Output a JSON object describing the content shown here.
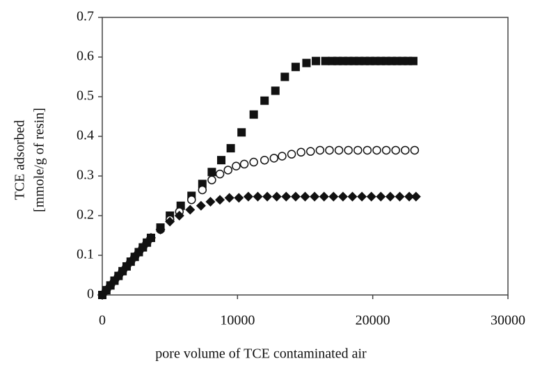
{
  "chart_data": {
    "type": "scatter",
    "ylabel": [
      "TCE adsorbed",
      "[mmole/g of resin]"
    ],
    "xlabel": "pore volume of TCE contaminated air",
    "xlim": [
      0,
      30000
    ],
    "xticks": [
      0,
      10000,
      20000,
      30000
    ],
    "ylim": [
      0,
      0.7
    ],
    "yticks": [
      0,
      0.1,
      0.2,
      0.3,
      0.4,
      0.5,
      0.6,
      0.7
    ],
    "series": [
      {
        "marker": "square",
        "color": "#111111",
        "x": [
          0,
          300,
          600,
          900,
          1200,
          1500,
          1800,
          2100,
          2400,
          2700,
          3000,
          3300,
          3600,
          4300,
          5000,
          5800,
          6600,
          7400,
          8100,
          8800,
          9500,
          10300,
          11200,
          12000,
          12800,
          13500,
          14300,
          15100,
          15800,
          16500,
          17000,
          17400,
          17800,
          18200,
          18600,
          19000,
          19400,
          19800,
          20200,
          20600,
          21000,
          21400,
          21800,
          22200,
          22600,
          23000
        ],
        "values": [
          0,
          0.012,
          0.024,
          0.036,
          0.048,
          0.06,
          0.072,
          0.084,
          0.096,
          0.108,
          0.12,
          0.132,
          0.144,
          0.17,
          0.2,
          0.225,
          0.25,
          0.28,
          0.31,
          0.34,
          0.37,
          0.41,
          0.455,
          0.49,
          0.515,
          0.55,
          0.575,
          0.585,
          0.59,
          0.59,
          0.59,
          0.59,
          0.59,
          0.59,
          0.59,
          0.59,
          0.59,
          0.59,
          0.59,
          0.59,
          0.59,
          0.59,
          0.59,
          0.59,
          0.59,
          0.59
        ]
      },
      {
        "marker": "open-circle",
        "color": "#111111",
        "x": [
          0,
          300,
          600,
          900,
          1200,
          1500,
          1800,
          2100,
          2400,
          2700,
          3000,
          3300,
          3600,
          4300,
          5000,
          5700,
          6600,
          7400,
          8100,
          8700,
          9300,
          9900,
          10500,
          11200,
          12000,
          12700,
          13300,
          14000,
          14700,
          15400,
          16100,
          16800,
          17500,
          18200,
          18900,
          19600,
          20300,
          21000,
          21700,
          22400,
          23100
        ],
        "values": [
          0,
          0.012,
          0.024,
          0.036,
          0.048,
          0.06,
          0.072,
          0.084,
          0.096,
          0.108,
          0.12,
          0.132,
          0.144,
          0.165,
          0.19,
          0.21,
          0.24,
          0.265,
          0.29,
          0.305,
          0.315,
          0.325,
          0.33,
          0.335,
          0.34,
          0.345,
          0.35,
          0.355,
          0.36,
          0.362,
          0.365,
          0.365,
          0.365,
          0.365,
          0.365,
          0.365,
          0.365,
          0.365,
          0.365,
          0.365,
          0.365
        ]
      },
      {
        "marker": "diamond",
        "color": "#111111",
        "x": [
          0,
          300,
          600,
          900,
          1200,
          1500,
          1800,
          2100,
          2400,
          2700,
          3000,
          3300,
          3600,
          4300,
          5000,
          5700,
          6500,
          7300,
          8000,
          8700,
          9400,
          10100,
          10800,
          11500,
          12200,
          12900,
          13600,
          14300,
          15000,
          15700,
          16400,
          17100,
          17800,
          18500,
          19200,
          19900,
          20600,
          21300,
          22000,
          22700,
          23200
        ],
        "values": [
          0,
          0.012,
          0.024,
          0.036,
          0.048,
          0.06,
          0.072,
          0.084,
          0.096,
          0.108,
          0.12,
          0.132,
          0.144,
          0.165,
          0.185,
          0.2,
          0.215,
          0.225,
          0.235,
          0.24,
          0.245,
          0.245,
          0.248,
          0.248,
          0.248,
          0.248,
          0.248,
          0.248,
          0.248,
          0.248,
          0.248,
          0.248,
          0.248,
          0.248,
          0.248,
          0.248,
          0.248,
          0.248,
          0.248,
          0.248,
          0.248
        ]
      }
    ]
  }
}
